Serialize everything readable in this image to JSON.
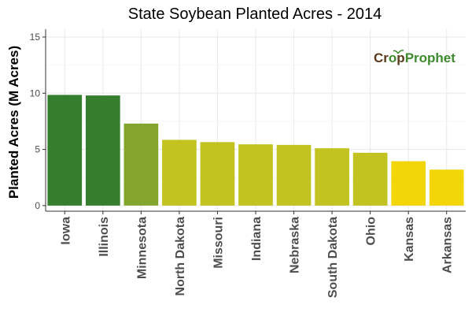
{
  "chart_data": {
    "type": "bar",
    "title": "State Soybean Planted Acres - 2014",
    "xlabel": "",
    "ylabel": "Planted Acres (M Acres)",
    "categories": [
      "Iowa",
      "Illinois",
      "Minnesota",
      "North Dakota",
      "Missouri",
      "Indiana",
      "Nebraska",
      "South Dakota",
      "Ohio",
      "Kansas",
      "Arkansas"
    ],
    "values": [
      9.85,
      9.8,
      7.3,
      5.85,
      5.65,
      5.45,
      5.4,
      5.1,
      4.7,
      3.95,
      3.2
    ],
    "bar_colors": [
      "#357e2e",
      "#357e2e",
      "#84a52d",
      "#c2c220",
      "#c2c220",
      "#c2c220",
      "#c2c220",
      "#c2c220",
      "#c2c220",
      "#f2d60a",
      "#f2d60a"
    ],
    "ylim": [
      -0.5,
      15.7
    ],
    "yticks": [
      0,
      5,
      10,
      15
    ],
    "grid": true,
    "panel_background": "#ffffff",
    "grid_color": "#ebebeb"
  },
  "logo": {
    "part1": "Cr",
    "part2": "o",
    "part3": "p",
    "part4": "Prophet",
    "color_dark": "#5a3a1a",
    "color_green": "#3e8a2e"
  }
}
